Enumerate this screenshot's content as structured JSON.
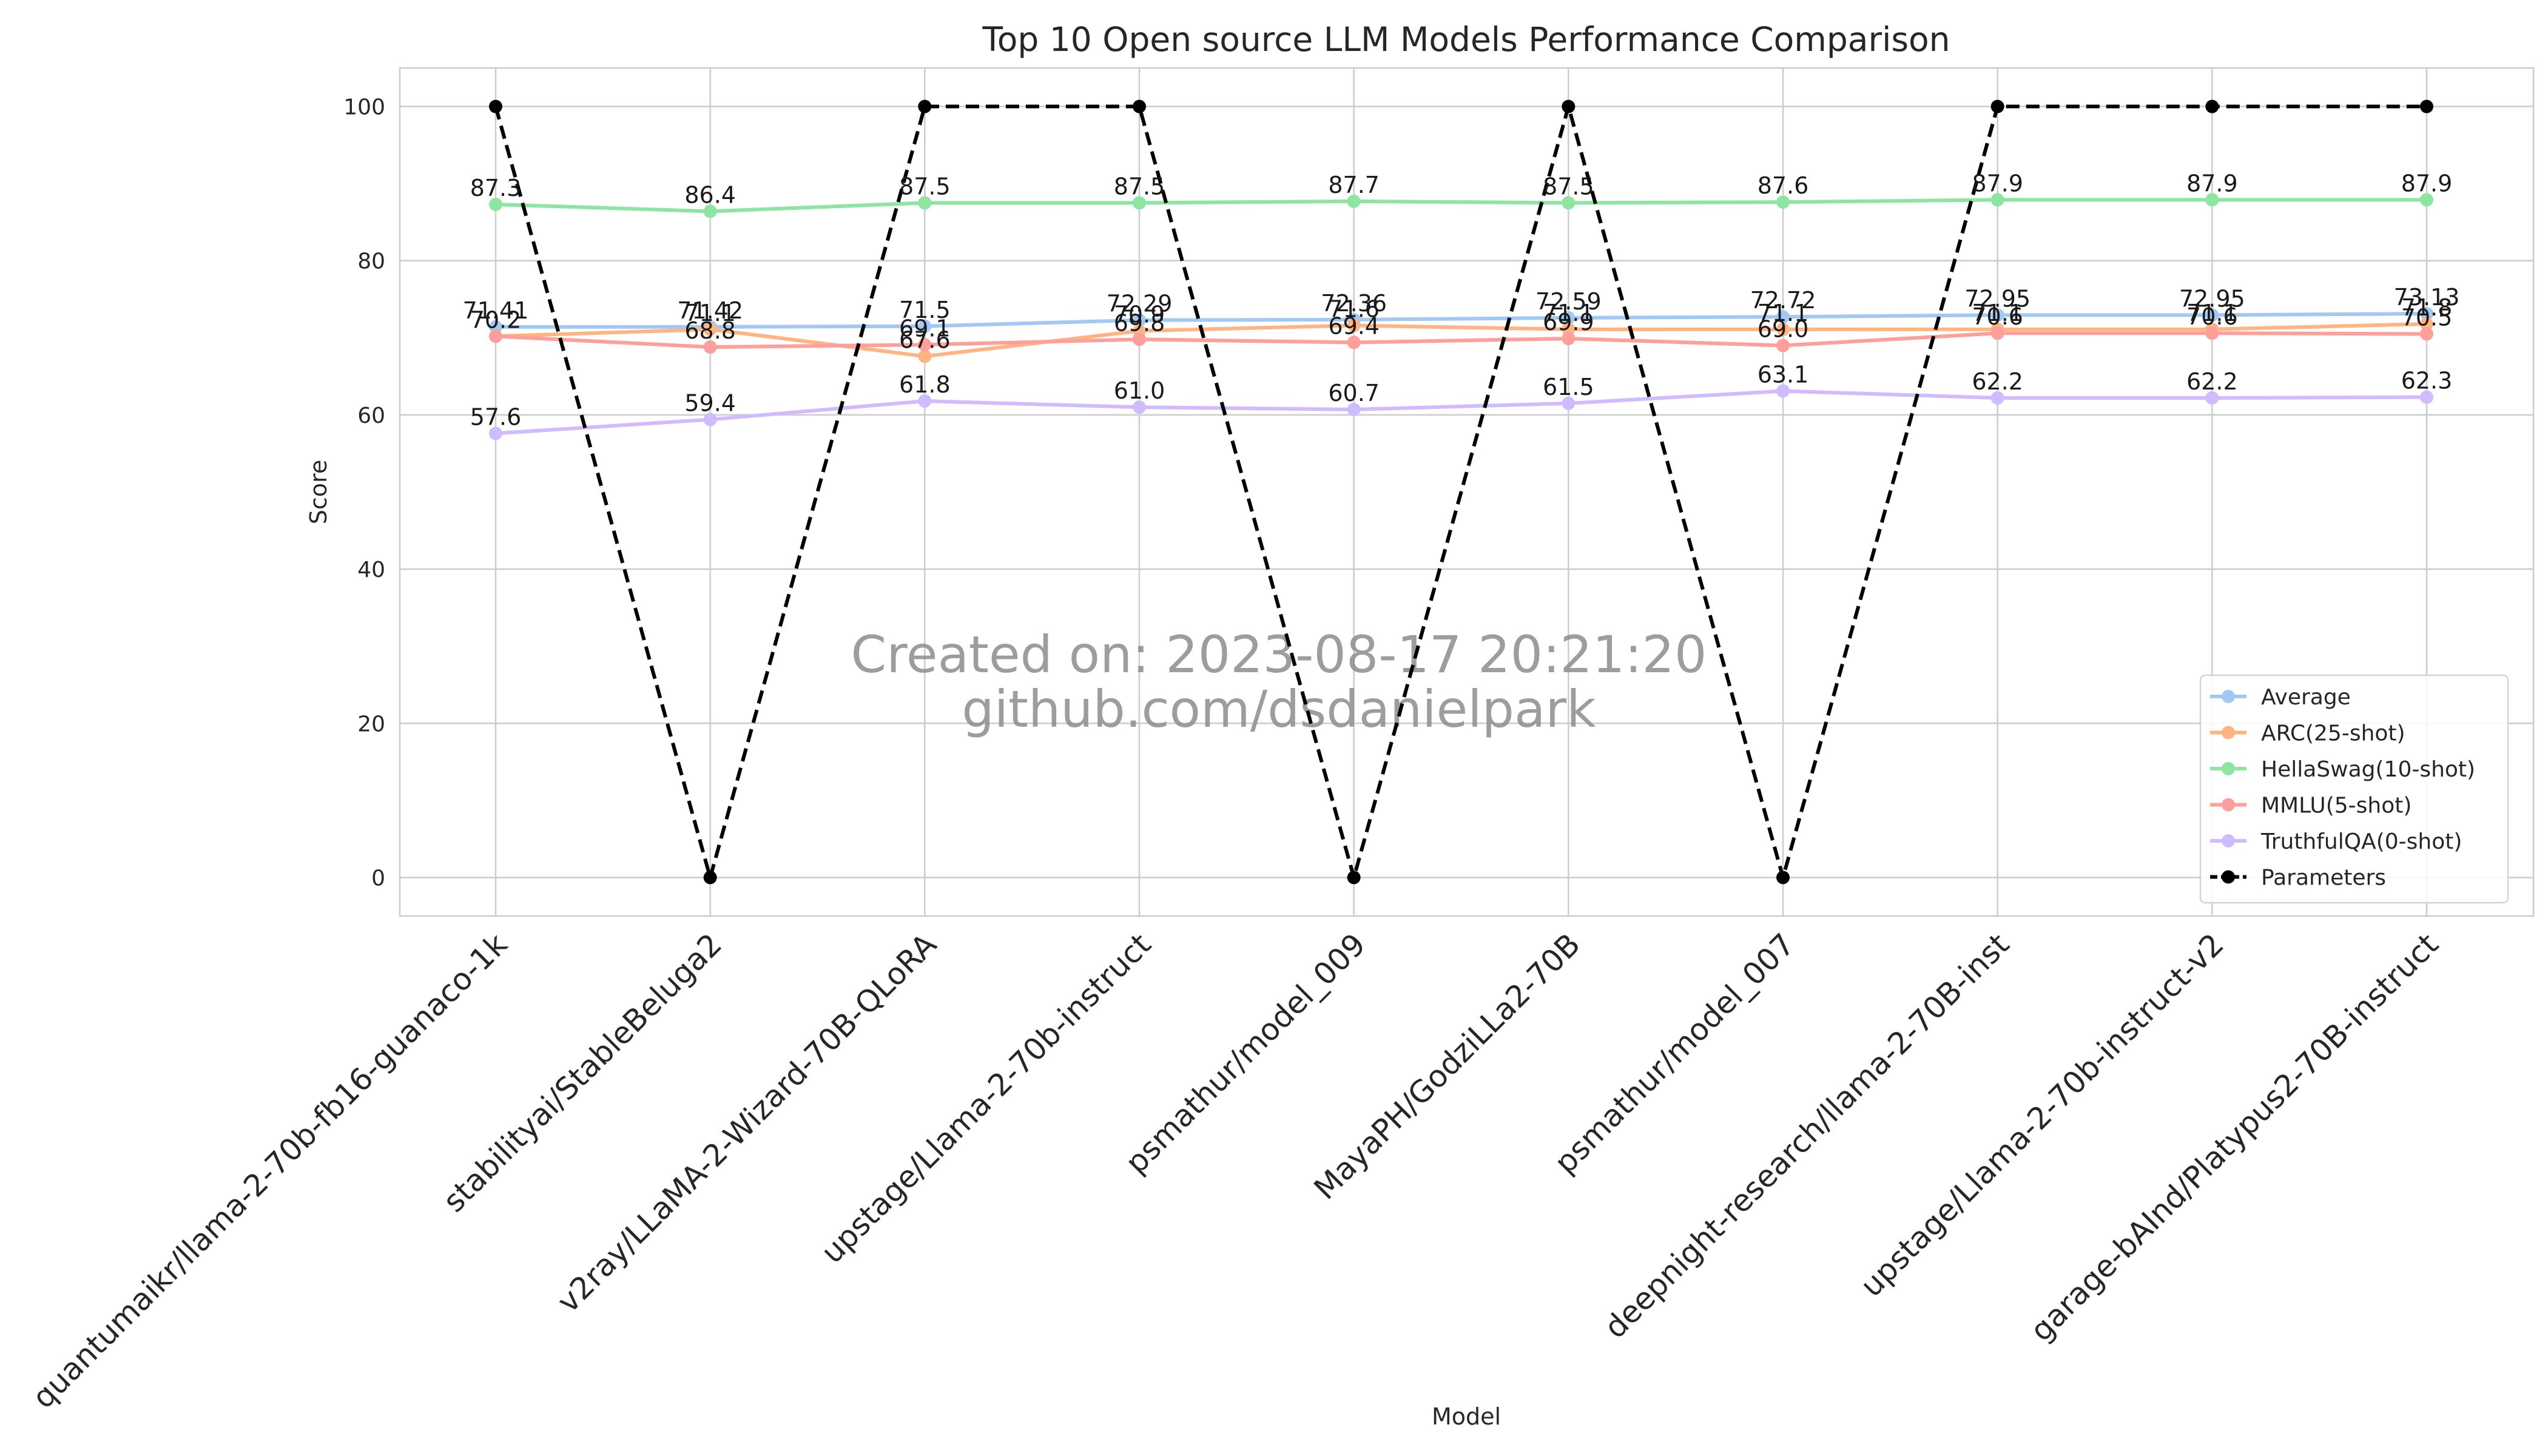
{
  "chart_data": {
    "type": "line",
    "title": "Top 10 Open source LLM Models Performance Comparison",
    "xlabel": "Model",
    "ylabel": "Score",
    "ylim": [
      -5,
      105
    ],
    "yticks": [
      0,
      20,
      40,
      60,
      80,
      100
    ],
    "grid": true,
    "legend_position": "lower-right",
    "watermark": [
      "Created on: 2023-08-17 20:21:20",
      "github.com/dsdanielpark"
    ],
    "categories": [
      "quantumaikr/llama-2-70b-fb16-guanaco-1k",
      "stabilityai/StableBeluga2",
      "v2ray/LLaMA-2-Wizard-70B-QLoRA",
      "upstage/Llama-2-70b-instruct",
      "psmathur/model_009",
      "MayaPH/GodziLLa2-70B",
      "psmathur/model_007",
      "deepnight-research/llama-2-70B-inst",
      "upstage/Llama-2-70b-instruct-v2",
      "garage-bAInd/Platypus2-70B-instruct"
    ],
    "series": [
      {
        "name": "Average",
        "color": "#a1c9f4",
        "style": "solid",
        "values": [
          71.41,
          71.42,
          71.5,
          72.29,
          72.36,
          72.59,
          72.72,
          72.95,
          72.95,
          73.13
        ],
        "labels": [
          "71.41",
          "71.42",
          "71.5",
          "72.29",
          "72.36",
          "72.59",
          "72.72",
          "72.95",
          "72.95",
          "73.13"
        ]
      },
      {
        "name": "ARC(25-shot)",
        "color": "#ffb482",
        "style": "solid",
        "values": [
          70.2,
          71.1,
          67.6,
          70.9,
          71.6,
          71.1,
          71.1,
          71.1,
          71.1,
          71.8
        ],
        "labels": [
          "70.2",
          "71.1",
          "67.6",
          "70.9",
          "71.6",
          "71.1",
          "71.1",
          "71.1",
          "71.1",
          "71.8"
        ]
      },
      {
        "name": "HellaSwag(10-shot)",
        "color": "#8de5a1",
        "style": "solid",
        "values": [
          87.3,
          86.4,
          87.5,
          87.5,
          87.7,
          87.5,
          87.6,
          87.9,
          87.9,
          87.9
        ],
        "labels": [
          "87.3",
          "86.4",
          "87.5",
          "87.5",
          "87.7",
          "87.5",
          "87.6",
          "87.9",
          "87.9",
          "87.9"
        ]
      },
      {
        "name": "MMLU(5-shot)",
        "color": "#ff9f9b",
        "style": "solid",
        "values": [
          70.2,
          68.8,
          69.1,
          69.8,
          69.4,
          69.9,
          69.0,
          70.6,
          70.6,
          70.5
        ],
        "labels": [
          "70.2",
          "68.8",
          "69.1",
          "69.8",
          "69.4",
          "69.9",
          "69.0",
          "70.6",
          "70.6",
          "70.5"
        ]
      },
      {
        "name": "TruthfulQA(0-shot)",
        "color": "#d0bbff",
        "style": "solid",
        "values": [
          57.6,
          59.4,
          61.8,
          61.0,
          60.7,
          61.5,
          63.1,
          62.2,
          62.2,
          62.3
        ],
        "labels": [
          "57.6",
          "59.4",
          "61.8",
          "61.0",
          "60.7",
          "61.5",
          "63.1",
          "62.2",
          "62.2",
          "62.3"
        ]
      },
      {
        "name": "Parameters",
        "color": "#000000",
        "style": "dashed",
        "values": [
          100,
          0,
          100,
          100,
          0,
          100,
          0,
          100,
          100,
          100
        ],
        "labels": null
      }
    ]
  }
}
